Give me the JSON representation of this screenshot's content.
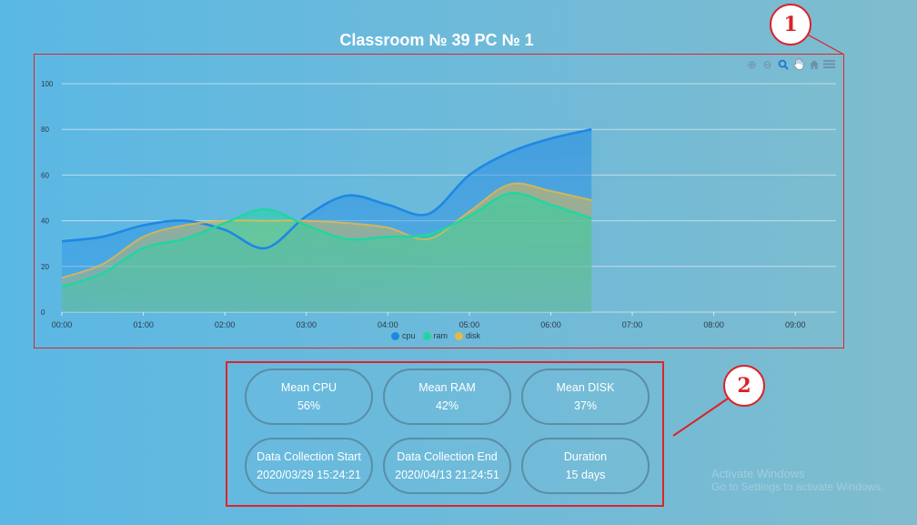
{
  "title": "Classroom № 39 PC № 1",
  "annotations": {
    "label_1": "1",
    "label_2": "2",
    "color": "#e0232b"
  },
  "toolbar": [
    "zoom-in-icon",
    "zoom-out-icon",
    "magnifier-icon",
    "pan-hand-icon",
    "home-icon",
    "menu-icon"
  ],
  "chart_data": {
    "type": "area",
    "title": "",
    "xlabel": "",
    "ylabel": "",
    "x_ticks": [
      "00:00",
      "01:00",
      "02:00",
      "03:00",
      "04:00",
      "05:00",
      "06:00",
      "07:00",
      "08:00",
      "09:00"
    ],
    "y_ticks": [
      "0",
      "20",
      "40",
      "60",
      "80",
      "100"
    ],
    "ylim": [
      0,
      100
    ],
    "xlim_hours": [
      0,
      9.5
    ],
    "grid": true,
    "legend": "bottom-center",
    "x_hours": [
      0,
      0.5,
      1,
      1.5,
      2,
      2.5,
      3,
      3.5,
      4,
      4.5,
      5,
      5.5,
      6,
      6.5
    ],
    "series": [
      {
        "name": "cpu",
        "color": "#1e88e5",
        "values": [
          31,
          33,
          38,
          40,
          36,
          28,
          42,
          51,
          47,
          43,
          60,
          70,
          76,
          80
        ]
      },
      {
        "name": "ram",
        "color": "#20d6a0",
        "values": [
          11,
          17,
          28,
          32,
          39,
          45,
          38,
          32,
          33,
          34,
          42,
          52,
          47,
          41
        ]
      },
      {
        "name": "disk",
        "color": "#e6b84a",
        "values": [
          15,
          21,
          33,
          38,
          40,
          40,
          40,
          39,
          37,
          32,
          44,
          56,
          53,
          49
        ]
      }
    ]
  },
  "stats": {
    "mean_cpu": {
      "label": "Mean CPU",
      "value": "56%"
    },
    "mean_ram": {
      "label": "Mean RAM",
      "value": "42%"
    },
    "mean_disk": {
      "label": "Mean DISK",
      "value": "37%"
    },
    "start": {
      "label": "Data Collection Start",
      "value": "2020/03/29 15:24:21"
    },
    "end": {
      "label": "Data Collection End",
      "value": "2020/04/13 21:24:51"
    },
    "duration": {
      "label": "Duration",
      "value": "15 days"
    }
  },
  "watermark": {
    "line1": "Activate Windows",
    "line2": "Go to Settings to activate Windows."
  }
}
